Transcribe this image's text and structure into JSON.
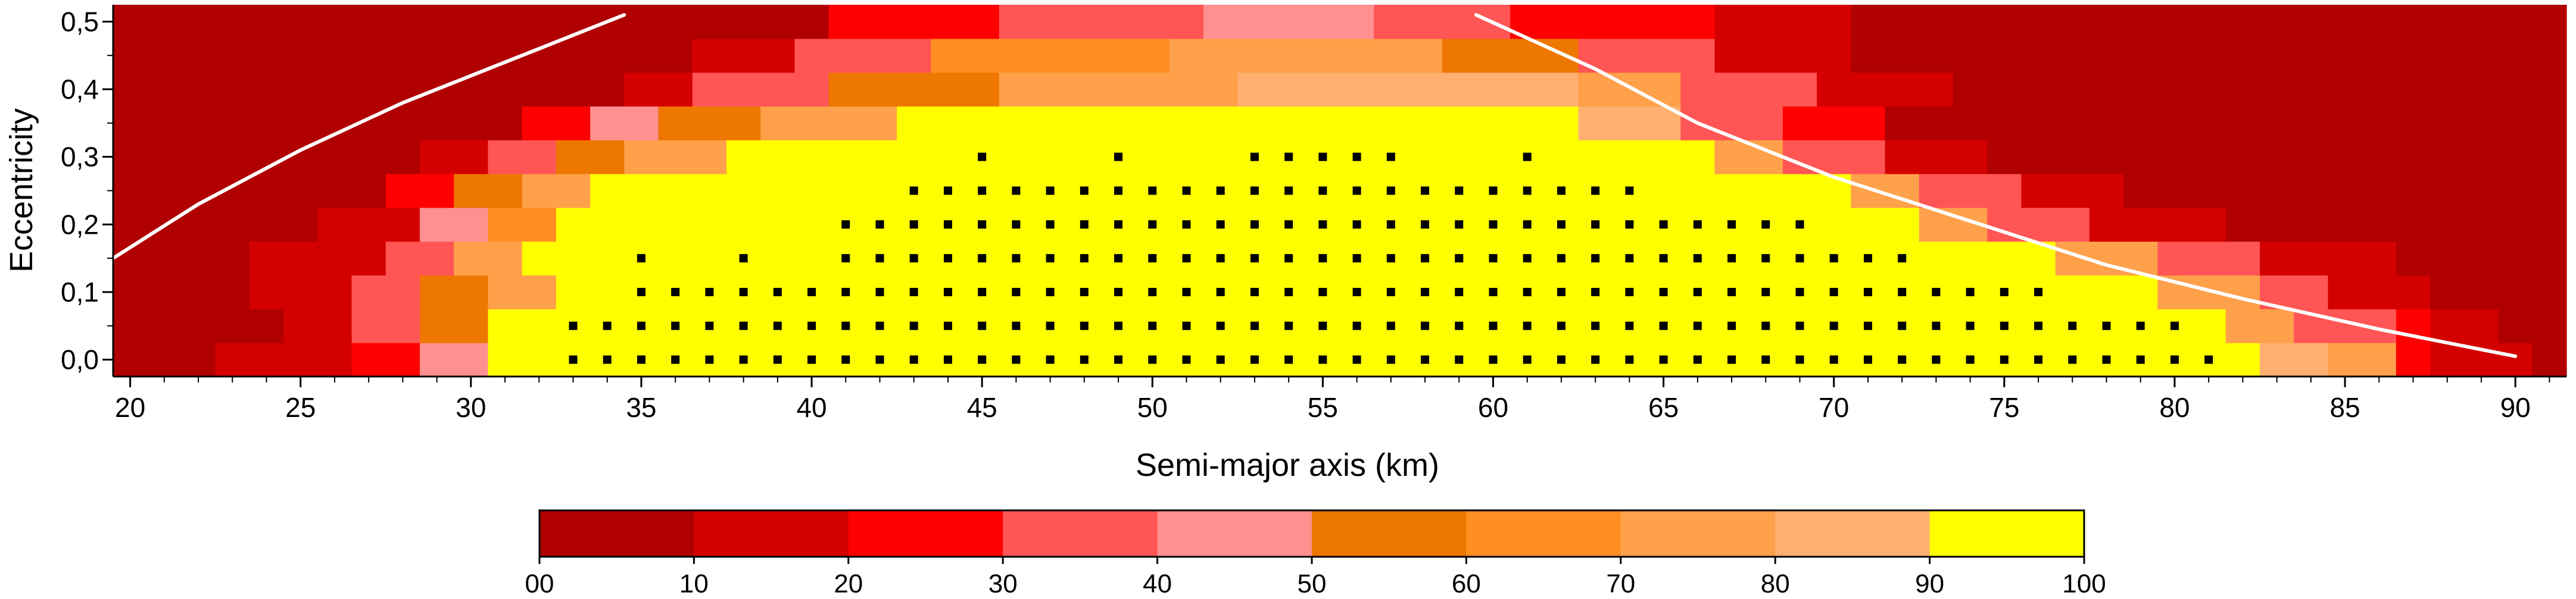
{
  "chart_data": {
    "type": "heatmap",
    "title": "",
    "xlabel": "Semi-major axis (km)",
    "ylabel": "Eccentricity",
    "xlim": [
      19.5,
      91.5
    ],
    "ylim": [
      -0.025,
      0.525
    ],
    "x_ticks": [
      20,
      25,
      30,
      35,
      40,
      45,
      50,
      55,
      60,
      65,
      70,
      75,
      80,
      85,
      90
    ],
    "x_tick_labels": [
      "20",
      "25",
      "30",
      "35",
      "40",
      "45",
      "50",
      "55",
      "60",
      "65",
      "70",
      "75",
      "80",
      "85",
      "90"
    ],
    "y_ticks": [
      0.0,
      0.1,
      0.2,
      0.3,
      0.4,
      0.5
    ],
    "y_tick_labels": [
      "0,0",
      "0,1",
      "0,2",
      "0,3",
      "0,4",
      "0,5"
    ],
    "cell": {
      "da_km": 1.0,
      "de": 0.05
    },
    "colorbar": {
      "tick_labels": [
        "00",
        "10",
        "20",
        "30",
        "40",
        "50",
        "60",
        "70",
        "80",
        "90",
        "100"
      ],
      "colors": [
        "#b00000",
        "#d40000",
        "#ff0000",
        "#ff5555",
        "#ff9090",
        "#ee7700",
        "#ff8f22",
        "#ffa04a",
        "#ffb070",
        "#ffff00"
      ]
    },
    "series": [
      {
        "e": 0.0,
        "ranges": [
          [
            19.5,
            22.5,
            0
          ],
          [
            22.5,
            26.5,
            1
          ],
          [
            26.5,
            28.5,
            2
          ],
          [
            28.5,
            30.5,
            4
          ],
          [
            30.5,
            82.5,
            9
          ],
          [
            82.5,
            84.5,
            8
          ],
          [
            84.5,
            86.5,
            7
          ],
          [
            86.5,
            87.5,
            2
          ],
          [
            87.5,
            90.5,
            1
          ],
          [
            90.5,
            91.5,
            0
          ]
        ]
      },
      {
        "e": 0.05,
        "ranges": [
          [
            19.5,
            24.5,
            0
          ],
          [
            24.5,
            26.5,
            1
          ],
          [
            26.5,
            28.5,
            3
          ],
          [
            28.5,
            30.5,
            5
          ],
          [
            30.5,
            81.5,
            9
          ],
          [
            81.5,
            83.5,
            7
          ],
          [
            83.5,
            86.5,
            3
          ],
          [
            86.5,
            87.5,
            2
          ],
          [
            87.5,
            89.5,
            1
          ],
          [
            89.5,
            91.5,
            0
          ]
        ]
      },
      {
        "e": 0.1,
        "ranges": [
          [
            19.5,
            23.5,
            0
          ],
          [
            23.5,
            26.5,
            1
          ],
          [
            26.5,
            28.5,
            3
          ],
          [
            28.5,
            30.5,
            5
          ],
          [
            30.5,
            32.5,
            7
          ],
          [
            32.5,
            79.5,
            9
          ],
          [
            79.5,
            82.5,
            7
          ],
          [
            82.5,
            84.5,
            3
          ],
          [
            84.5,
            87.5,
            1
          ],
          [
            87.5,
            91.5,
            0
          ]
        ]
      },
      {
        "e": 0.15,
        "ranges": [
          [
            19.5,
            23.5,
            0
          ],
          [
            23.5,
            27.5,
            1
          ],
          [
            27.5,
            29.5,
            3
          ],
          [
            29.5,
            31.5,
            7
          ],
          [
            31.5,
            76.5,
            9
          ],
          [
            76.5,
            79.5,
            7
          ],
          [
            79.5,
            82.5,
            3
          ],
          [
            82.5,
            86.5,
            1
          ],
          [
            86.5,
            91.5,
            0
          ]
        ]
      },
      {
        "e": 0.2,
        "ranges": [
          [
            19.5,
            25.5,
            0
          ],
          [
            25.5,
            28.5,
            1
          ],
          [
            28.5,
            30.5,
            4
          ],
          [
            30.5,
            32.5,
            6
          ],
          [
            32.5,
            72.5,
            9
          ],
          [
            72.5,
            74.5,
            7
          ],
          [
            74.5,
            77.5,
            3
          ],
          [
            77.5,
            81.5,
            1
          ],
          [
            81.5,
            91.5,
            0
          ]
        ]
      },
      {
        "e": 0.25,
        "ranges": [
          [
            19.5,
            27.5,
            0
          ],
          [
            27.5,
            29.5,
            2
          ],
          [
            29.5,
            31.5,
            5
          ],
          [
            31.5,
            33.5,
            7
          ],
          [
            33.5,
            70.5,
            9
          ],
          [
            70.5,
            72.5,
            7
          ],
          [
            72.5,
            75.5,
            3
          ],
          [
            75.5,
            78.5,
            1
          ],
          [
            78.5,
            91.5,
            0
          ]
        ]
      },
      {
        "e": 0.3,
        "ranges": [
          [
            19.5,
            28.5,
            0
          ],
          [
            28.5,
            30.5,
            1
          ],
          [
            30.5,
            32.5,
            3
          ],
          [
            32.5,
            34.5,
            5
          ],
          [
            34.5,
            37.5,
            7
          ],
          [
            37.5,
            66.5,
            9
          ],
          [
            66.5,
            68.5,
            7
          ],
          [
            68.5,
            71.5,
            3
          ],
          [
            71.5,
            74.5,
            1
          ],
          [
            74.5,
            91.5,
            0
          ]
        ]
      },
      {
        "e": 0.35,
        "ranges": [
          [
            19.5,
            31.5,
            0
          ],
          [
            31.5,
            33.5,
            2
          ],
          [
            33.5,
            35.5,
            4
          ],
          [
            35.5,
            38.5,
            5
          ],
          [
            38.5,
            42.5,
            7
          ],
          [
            42.5,
            62.5,
            9
          ],
          [
            62.5,
            65.5,
            8
          ],
          [
            65.5,
            68.5,
            3
          ],
          [
            68.5,
            71.5,
            2
          ],
          [
            71.5,
            91.5,
            0
          ]
        ]
      },
      {
        "e": 0.4,
        "ranges": [
          [
            19.5,
            34.5,
            0
          ],
          [
            34.5,
            36.5,
            1
          ],
          [
            36.5,
            40.5,
            3
          ],
          [
            40.5,
            45.5,
            5
          ],
          [
            45.5,
            52.5,
            7
          ],
          [
            52.5,
            62.5,
            8
          ],
          [
            62.5,
            65.5,
            7
          ],
          [
            65.5,
            69.5,
            3
          ],
          [
            69.5,
            73.5,
            1
          ],
          [
            73.5,
            91.5,
            0
          ]
        ]
      },
      {
        "e": 0.45,
        "ranges": [
          [
            19.5,
            36.5,
            0
          ],
          [
            36.5,
            39.5,
            1
          ],
          [
            39.5,
            43.5,
            3
          ],
          [
            43.5,
            50.5,
            6
          ],
          [
            50.5,
            58.5,
            7
          ],
          [
            58.5,
            62.5,
            5
          ],
          [
            62.5,
            66.5,
            3
          ],
          [
            66.5,
            70.5,
            1
          ],
          [
            70.5,
            91.5,
            0
          ]
        ]
      },
      {
        "e": 0.5,
        "ranges": [
          [
            19.5,
            40.5,
            0
          ],
          [
            40.5,
            45.5,
            2
          ],
          [
            45.5,
            51.5,
            3
          ],
          [
            51.5,
            56.5,
            4
          ],
          [
            56.5,
            60.5,
            3
          ],
          [
            60.5,
            66.5,
            2
          ],
          [
            66.5,
            70.5,
            1
          ],
          [
            70.5,
            91.5,
            0
          ]
        ]
      }
    ],
    "markers": [
      {
        "e": 0.0,
        "a_from": 33,
        "a_to": 81
      },
      {
        "e": 0.05,
        "a_from": 33,
        "a_to": 80
      },
      {
        "e": 0.1,
        "a_from": 35,
        "a_to": 76
      },
      {
        "e": 0.15,
        "a_from": 35,
        "a_to": 72,
        "skip": [
          36,
          37,
          39,
          40
        ]
      },
      {
        "e": 0.2,
        "a_from": 41,
        "a_to": 69
      },
      {
        "e": 0.25,
        "a_from": 43,
        "a_to": 64
      },
      {
        "e": 0.3,
        "a_points": [
          45,
          49,
          53,
          54,
          55,
          56,
          57,
          61
        ]
      }
    ],
    "curves": [
      {
        "points": [
          [
            19.5,
            0.15
          ],
          [
            22.0,
            0.23
          ],
          [
            25.0,
            0.31
          ],
          [
            28.0,
            0.38
          ],
          [
            31.0,
            0.44
          ],
          [
            34.5,
            0.51
          ]
        ]
      },
      {
        "points": [
          [
            59.5,
            0.51
          ],
          [
            63.0,
            0.43
          ],
          [
            66.0,
            0.35
          ],
          [
            70.0,
            0.27
          ],
          [
            74.0,
            0.205
          ],
          [
            78.0,
            0.14
          ],
          [
            82.0,
            0.09
          ],
          [
            86.0,
            0.045
          ],
          [
            90.0,
            0.005
          ]
        ]
      }
    ]
  }
}
